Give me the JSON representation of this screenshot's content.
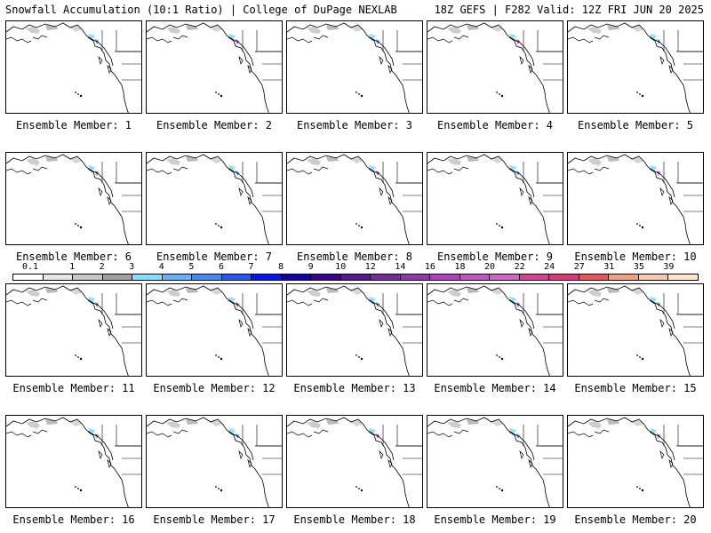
{
  "header": {
    "left_title": "Snowfall Accumulation (10:1 Ratio) | College of DuPage NEXLAB",
    "right_title": "18Z GEFS | F282 Valid: 12Z FRI JUN 20 2025"
  },
  "colorbar": {
    "labels": [
      "0.1",
      "1",
      "2",
      "3",
      "4",
      "5",
      "6",
      "7",
      "8",
      "9",
      "10",
      "12",
      "14",
      "16",
      "18",
      "20",
      "22",
      "24",
      "27",
      "31",
      "35",
      "39"
    ],
    "colors": [
      "#ffffff",
      "#e6e6e6",
      "#c8c8c8",
      "#a0a0a0",
      "#7fdfff",
      "#5fb4ff",
      "#3c8cff",
      "#1e5aff",
      "#0014ff",
      "#1400b4",
      "#3c0096",
      "#5a1496",
      "#7828a0",
      "#9632b4",
      "#b43cc8",
      "#c850c8",
      "#d264c8",
      "#dc3c96",
      "#e6327d",
      "#f0505a",
      "#f5a07d",
      "#fac8aa",
      "#ffe6c8"
    ]
  },
  "members": [
    {
      "label": "Ensemble Member: 1"
    },
    {
      "label": "Ensemble Member: 2"
    },
    {
      "label": "Ensemble Member: 3"
    },
    {
      "label": "Ensemble Member: 4"
    },
    {
      "label": "Ensemble Member: 5"
    },
    {
      "label": "Ensemble Member: 6"
    },
    {
      "label": "Ensemble Member: 7"
    },
    {
      "label": "Ensemble Member: 8"
    },
    {
      "label": "Ensemble Member: 9"
    },
    {
      "label": "Ensemble Member: 10"
    },
    {
      "label": "Ensemble Member: 11"
    },
    {
      "label": "Ensemble Member: 12"
    },
    {
      "label": "Ensemble Member: 13"
    },
    {
      "label": "Ensemble Member: 14"
    },
    {
      "label": "Ensemble Member: 15"
    },
    {
      "label": "Ensemble Member: 16"
    },
    {
      "label": "Ensemble Member: 17"
    },
    {
      "label": "Ensemble Member: 18"
    },
    {
      "label": "Ensemble Member: 19"
    },
    {
      "label": "Ensemble Member: 20"
    }
  ]
}
